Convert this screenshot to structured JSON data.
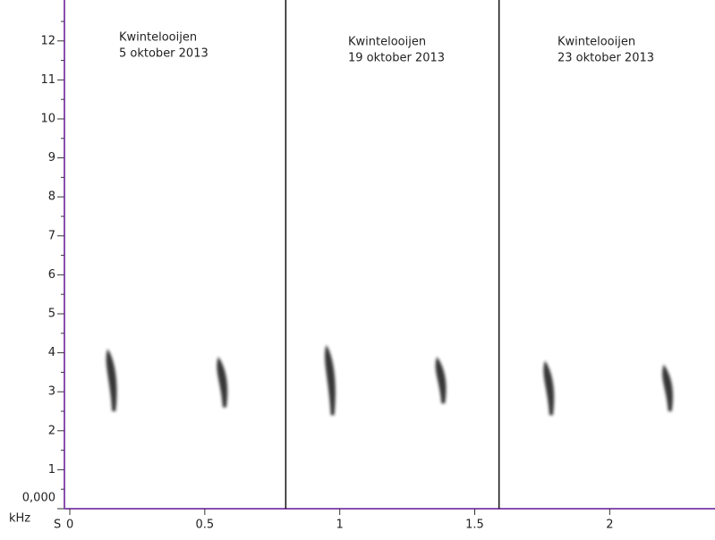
{
  "chart_data": {
    "type": "spectrogram",
    "x_unit": "S",
    "y_unit": "kHz",
    "xlim": [
      0,
      2.39
    ],
    "ylim": [
      0,
      13.05
    ],
    "xticks": [
      0,
      0.5,
      1,
      1.5,
      2
    ],
    "yticks": [
      {
        "value": 0,
        "label": "0,000"
      },
      1,
      2,
      3,
      4,
      5,
      6,
      7,
      8,
      9,
      10,
      11,
      12
    ],
    "dividers": [
      0.8,
      1.59
    ],
    "annotations": [
      {
        "place": "Kwintelooijen",
        "date": "5 oktober 2013"
      },
      {
        "place": "Kwintelooijen",
        "date": "19 oktober 2013"
      },
      {
        "place": "Kwintelooijen",
        "date": "23 oktober 2013"
      }
    ],
    "color": "#222222",
    "calls": {
      "x": [
        0.15,
        0.56,
        0.96,
        1.37,
        1.77,
        2.21
      ],
      "low": [
        2.5,
        2.6,
        2.4,
        2.7,
        2.4,
        2.5
      ],
      "high": [
        4.1,
        3.9,
        4.2,
        3.9,
        3.8,
        3.7
      ]
    }
  }
}
